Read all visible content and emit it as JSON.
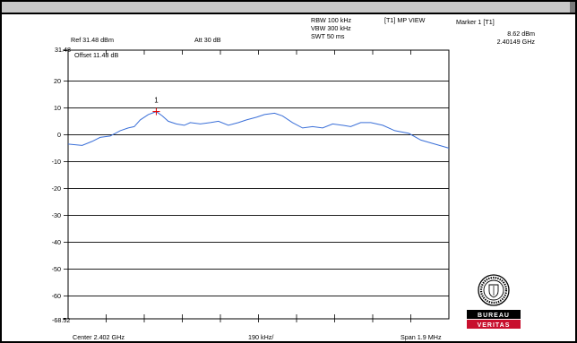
{
  "chart_data": {
    "type": "line",
    "title": "",
    "reference_level": "Ref 31.48 dBm",
    "attenuation": "Att  30 dB",
    "offset": "Offset 11.48 dB",
    "rbw": "RBW 100 kHz",
    "vbw": "VBW 300 kHz",
    "swt": "SWT 50 ms",
    "trace_mode": "[T1] MP VIEW",
    "marker": {
      "title": "Marker 1 [T1]",
      "level": "8.62 dBm",
      "freq": "2.40149 GHz",
      "label": "1",
      "x": 2.40149,
      "y": 8.62
    },
    "center": "Center 2.402 GHz",
    "span_per_div": "190 kHz/",
    "span": "Span 1.9 MHz",
    "y_top_label": "31.48",
    "y_bottom_label": "-68.52",
    "yticks": [
      "20",
      "10",
      "0",
      "-10",
      "-20",
      "-30",
      "-40",
      "-50",
      "-60"
    ],
    "yticks_values": [
      20,
      10,
      0,
      -10,
      -20,
      -30,
      -40,
      -50,
      -60
    ],
    "ylim": [
      -68.52,
      31.48
    ],
    "xlim": [
      2.40105,
      2.40295
    ],
    "x": [
      2.40105,
      2.40112,
      2.40117,
      2.40121,
      2.40126,
      2.40131,
      2.40135,
      2.40138,
      2.40141,
      2.40145,
      2.40149,
      2.40152,
      2.40155,
      2.40159,
      2.40163,
      2.40166,
      2.40171,
      2.40176,
      2.4018,
      2.40185,
      2.4019,
      2.40194,
      2.40199,
      2.40203,
      2.40208,
      2.40212,
      2.40217,
      2.40222,
      2.40227,
      2.40232,
      2.40237,
      2.40242,
      2.40246,
      2.40251,
      2.40256,
      2.40262,
      2.40268,
      2.40275,
      2.40281,
      2.40288,
      2.40295
    ],
    "y": [
      -3.5,
      -4.0,
      -2.5,
      -1.0,
      -0.5,
      1.5,
      2.5,
      3.0,
      5.5,
      7.5,
      8.62,
      7.0,
      5.0,
      4.0,
      3.5,
      4.5,
      4.0,
      4.5,
      5.0,
      3.5,
      4.5,
      5.5,
      6.5,
      7.5,
      8.0,
      7.0,
      4.5,
      2.5,
      3.0,
      2.5,
      4.0,
      3.5,
      3.0,
      4.5,
      4.5,
      3.5,
      1.5,
      0.5,
      -2.0,
      -3.5,
      -5.0
    ],
    "grid": true,
    "line_color": "#3a6fd8",
    "marker_color": "#e00000"
  },
  "logo": {
    "name": "bureau-veritas-logo",
    "line1": "BUREAU",
    "line2": "VERITAS",
    "colors": {
      "top": "#000000",
      "bottom": "#c8102e"
    }
  }
}
